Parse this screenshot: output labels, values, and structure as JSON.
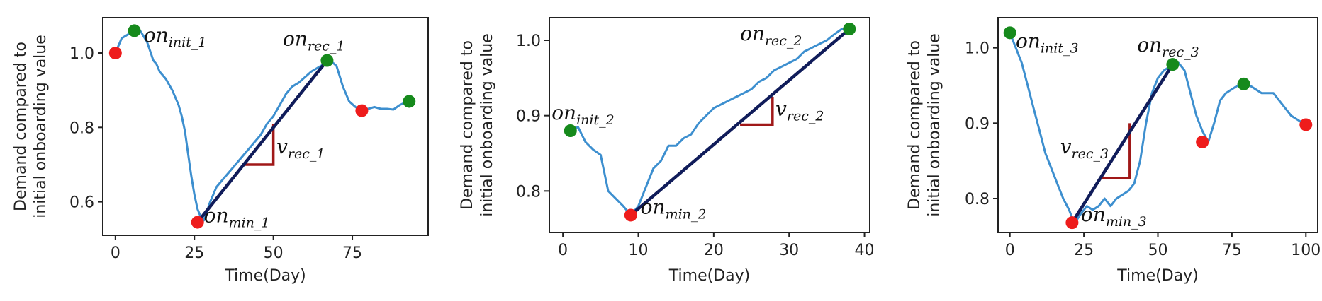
{
  "colors": {
    "series": "#3d8fcf",
    "min_point": "#ee1c1c",
    "peak_point": "#168a1c",
    "recovery_line": "#101c5a",
    "slope_triangle": "#a01818",
    "axis": "#222222"
  },
  "chart_data": [
    {
      "type": "line",
      "xlabel": "Time(Day)",
      "ylabel": [
        "Demand compared to",
        "initial onboarding value"
      ],
      "xlim": [
        -4,
        99
      ],
      "ylim": [
        0.51,
        1.095
      ],
      "xticks": [
        0,
        25,
        50,
        75
      ],
      "yticks": [
        0.6,
        0.8,
        1.0
      ],
      "ytick_labels": [
        "0.6",
        "0.8",
        "1.0"
      ],
      "series": {
        "name": "demand",
        "x": [
          0,
          2,
          4,
          6,
          8,
          10,
          12,
          13,
          14,
          16,
          18,
          20,
          21,
          22,
          23,
          24,
          25,
          26,
          27,
          28,
          29,
          30,
          31,
          32,
          34,
          36,
          38,
          40,
          42,
          44,
          46,
          48,
          50,
          52,
          54,
          56,
          58,
          60,
          62,
          64,
          66,
          68,
          70,
          72,
          74,
          76,
          78,
          80,
          82,
          84,
          86,
          88,
          90,
          92,
          93
        ],
        "y": [
          1.0,
          1.04,
          1.05,
          1.06,
          1.058,
          1.03,
          0.98,
          0.97,
          0.95,
          0.93,
          0.9,
          0.86,
          0.83,
          0.79,
          0.73,
          0.67,
          0.62,
          0.58,
          0.56,
          0.55,
          0.575,
          0.6,
          0.62,
          0.64,
          0.66,
          0.68,
          0.7,
          0.72,
          0.74,
          0.76,
          0.78,
          0.81,
          0.83,
          0.86,
          0.89,
          0.91,
          0.92,
          0.935,
          0.95,
          0.96,
          0.97,
          0.98,
          0.965,
          0.91,
          0.87,
          0.855,
          0.845,
          0.85,
          0.855,
          0.85,
          0.85,
          0.848,
          0.86,
          0.868,
          0.87
        ]
      },
      "red_points": [
        {
          "x": 0,
          "y": 1.0
        },
        {
          "x": 26,
          "y": 0.545
        },
        {
          "x": 78,
          "y": 0.845
        }
      ],
      "green_points": [
        {
          "x": 6,
          "y": 1.06
        },
        {
          "x": 67,
          "y": 0.98
        },
        {
          "x": 93,
          "y": 0.87
        }
      ],
      "recovery_line": {
        "x1": 26,
        "y1": 0.545,
        "x2": 67,
        "y2": 0.98
      },
      "slope_triangle": {
        "x1": 40,
        "y1": 0.7,
        "x2": 50,
        "y2": 0.81
      },
      "annotations": [
        {
          "base": "on",
          "sub": "init_1",
          "x": 9,
          "y": 1.03
        },
        {
          "base": "on",
          "sub": "rec_1",
          "x": 53,
          "y": 1.02
        },
        {
          "base": "on",
          "sub": "min_1",
          "x": 28,
          "y": 0.545
        },
        {
          "base": "v",
          "sub": "rec_1",
          "x": 51,
          "y": 0.73
        }
      ]
    },
    {
      "type": "line",
      "xlabel": "Time(Day)",
      "ylabel": [
        "Demand compared to",
        "initial onboarding value"
      ],
      "xlim": [
        -1.8,
        40.7
      ],
      "ylim": [
        0.745,
        1.03
      ],
      "xticks": [
        0,
        10,
        20,
        30,
        40
      ],
      "yticks": [
        0.8,
        0.9,
        1.0
      ],
      "ytick_labels": [
        "0.8",
        "0.9",
        "1.0"
      ],
      "series": {
        "name": "demand",
        "x": [
          1,
          2,
          3,
          4,
          5,
          6,
          7,
          8,
          9,
          10,
          11,
          12,
          13,
          14,
          15,
          16,
          17,
          18,
          19,
          20,
          21,
          22,
          23,
          24,
          25,
          26,
          27,
          28,
          29,
          30,
          31,
          32,
          33,
          34,
          35,
          36,
          37,
          38
        ],
        "y": [
          0.88,
          0.885,
          0.865,
          0.855,
          0.848,
          0.8,
          0.79,
          0.78,
          0.768,
          0.78,
          0.805,
          0.83,
          0.84,
          0.86,
          0.86,
          0.87,
          0.875,
          0.89,
          0.9,
          0.91,
          0.915,
          0.92,
          0.925,
          0.93,
          0.935,
          0.945,
          0.95,
          0.96,
          0.965,
          0.97,
          0.975,
          0.985,
          0.99,
          0.995,
          1.0,
          1.008,
          1.015,
          1.015
        ]
      },
      "red_points": [
        {
          "x": 9,
          "y": 0.768
        }
      ],
      "green_points": [
        {
          "x": 1,
          "y": 0.88
        },
        {
          "x": 38,
          "y": 1.015
        }
      ],
      "recovery_line": {
        "x1": 9,
        "y1": 0.768,
        "x2": 38,
        "y2": 1.015
      },
      "slope_triangle": {
        "x1": 23.5,
        "y1": 0.888,
        "x2": 27.8,
        "y2": 0.925
      },
      "annotations": [
        {
          "base": "on",
          "sub": "init_2",
          "x": -1.5,
          "y": 0.895
        },
        {
          "base": "on",
          "sub": "rec_2",
          "x": 23.5,
          "y": 1.0
        },
        {
          "base": "on",
          "sub": "min_2",
          "x": 10.3,
          "y": 0.77
        },
        {
          "base": "v",
          "sub": "rec_2",
          "x": 28.2,
          "y": 0.9
        }
      ]
    },
    {
      "type": "line",
      "xlabel": "Time(Day)",
      "ylabel": [
        "Demand compared to",
        "initial onboarding value"
      ],
      "xlim": [
        -4,
        104
      ],
      "ylim": [
        0.755,
        1.04
      ],
      "xticks": [
        0,
        25,
        50,
        75,
        100
      ],
      "yticks": [
        0.8,
        0.9,
        1.0
      ],
      "ytick_labels": [
        "0.8",
        "0.9",
        "1.0"
      ],
      "series": {
        "name": "demand",
        "x": [
          0,
          2,
          4,
          6,
          8,
          10,
          12,
          14,
          16,
          18,
          20,
          21,
          22,
          24,
          26,
          28,
          30,
          32,
          34,
          36,
          38,
          40,
          42,
          44,
          46,
          48,
          50,
          52,
          54,
          55,
          57,
          59,
          61,
          63,
          65,
          67,
          69,
          71,
          73,
          75,
          77,
          79,
          81,
          83,
          85,
          87,
          89,
          91,
          93,
          95,
          97,
          99,
          100
        ],
        "y": [
          1.02,
          1.0,
          0.98,
          0.95,
          0.92,
          0.89,
          0.86,
          0.84,
          0.82,
          0.8,
          0.785,
          0.775,
          0.768,
          0.78,
          0.79,
          0.785,
          0.79,
          0.8,
          0.79,
          0.8,
          0.805,
          0.81,
          0.82,
          0.85,
          0.9,
          0.94,
          0.96,
          0.97,
          0.975,
          0.978,
          0.98,
          0.97,
          0.94,
          0.91,
          0.89,
          0.875,
          0.9,
          0.93,
          0.94,
          0.945,
          0.95,
          0.952,
          0.95,
          0.945,
          0.94,
          0.94,
          0.94,
          0.93,
          0.92,
          0.91,
          0.905,
          0.9,
          0.898
        ]
      },
      "red_points": [
        {
          "x": 21,
          "y": 0.768
        },
        {
          "x": 65,
          "y": 0.875
        },
        {
          "x": 100,
          "y": 0.898
        }
      ],
      "green_points": [
        {
          "x": 0,
          "y": 1.02
        },
        {
          "x": 55,
          "y": 0.978
        },
        {
          "x": 79,
          "y": 0.952
        }
      ],
      "recovery_line": {
        "x1": 21,
        "y1": 0.768,
        "x2": 55,
        "y2": 0.978
      },
      "slope_triangle": {
        "x1": 30.5,
        "y1": 0.827,
        "x2": 40.5,
        "y2": 0.9
      },
      "annotations": [
        {
          "base": "on",
          "sub": "init_3",
          "x": 2,
          "y": 1.0
        },
        {
          "base": "on",
          "sub": "rec_3",
          "x": 43,
          "y": 0.995
        },
        {
          "base": "on",
          "sub": "min_3",
          "x": 24,
          "y": 0.77
        },
        {
          "base": "v",
          "sub": "rec_3",
          "x": 17,
          "y": 0.86
        }
      ]
    }
  ]
}
